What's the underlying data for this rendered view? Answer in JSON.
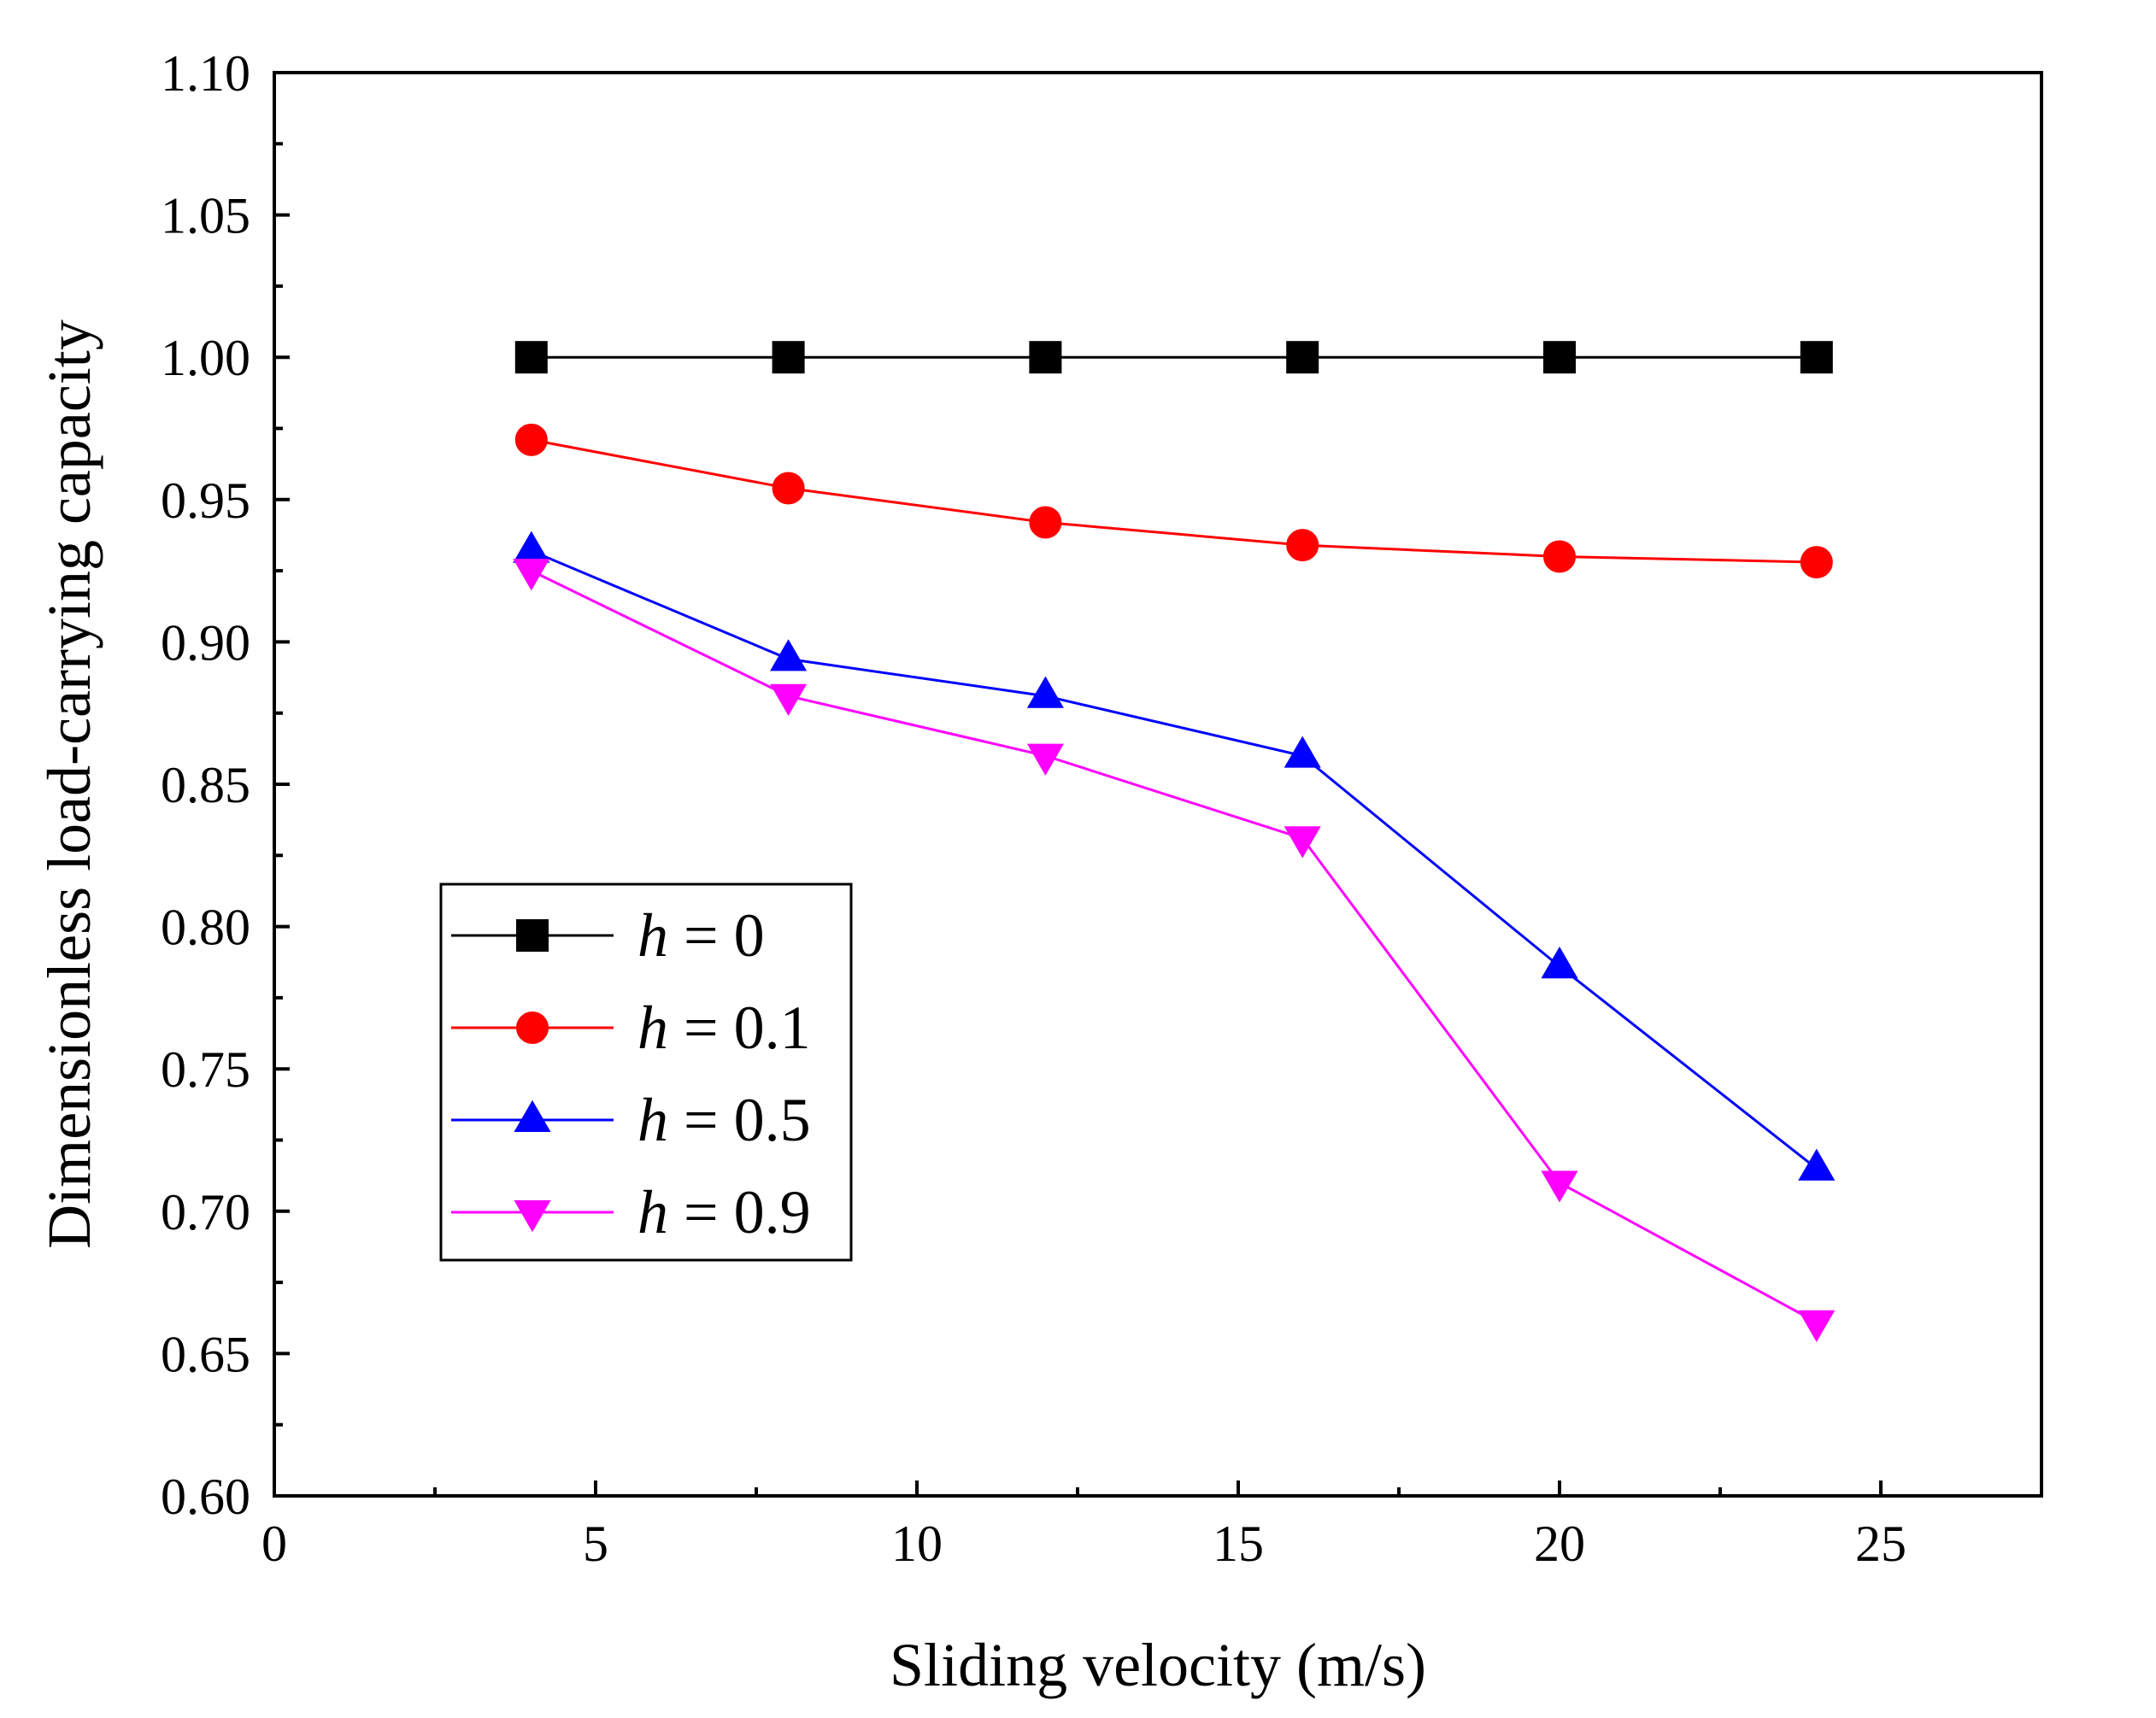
{
  "chart_data": {
    "type": "line",
    "title": "",
    "xlabel": "Sliding velocity (m/s)",
    "ylabel": "Dimensionless load-carrying capacity",
    "xlim": [
      0,
      27.5
    ],
    "ylim": [
      0.6,
      1.1
    ],
    "xticks": [
      0,
      5,
      10,
      15,
      20,
      25
    ],
    "xtick_labels": [
      "0",
      "5",
      "10",
      "15",
      "20",
      "25"
    ],
    "yticks": [
      0.6,
      0.65,
      0.7,
      0.75,
      0.8,
      0.85,
      0.9,
      0.95,
      1.0,
      1.05,
      1.1
    ],
    "ytick_labels": [
      "0.60",
      "0.65",
      "0.70",
      "0.75",
      "0.80",
      "0.85",
      "0.90",
      "0.95",
      "1.00",
      "1.05",
      "1.10"
    ],
    "grid": false,
    "legend_position": "lower-left",
    "x": [
      4,
      8,
      12,
      16,
      20,
      24
    ],
    "series": [
      {
        "name": "h = 0",
        "var": "h",
        "rest": " = 0",
        "color": "#000000",
        "marker": "square",
        "values": [
          1.0,
          1.0,
          1.0,
          1.0,
          1.0,
          1.0
        ]
      },
      {
        "name": "h = 0.1",
        "var": "h",
        "rest": " = 0.1",
        "color": "#ff0000",
        "marker": "circle",
        "values": [
          0.971,
          0.954,
          0.942,
          0.934,
          0.93,
          0.928
        ]
      },
      {
        "name": "h = 0.5",
        "var": "h",
        "rest": " = 0.5",
        "color": "#0000ff",
        "marker": "triangle-up",
        "values": [
          0.932,
          0.894,
          0.881,
          0.86,
          0.786,
          0.715
        ]
      },
      {
        "name": "h = 0.9",
        "var": "h",
        "rest": " = 0.9",
        "color": "#ff00ff",
        "marker": "triangle-down",
        "values": [
          0.925,
          0.881,
          0.86,
          0.831,
          0.71,
          0.661
        ]
      }
    ]
  }
}
